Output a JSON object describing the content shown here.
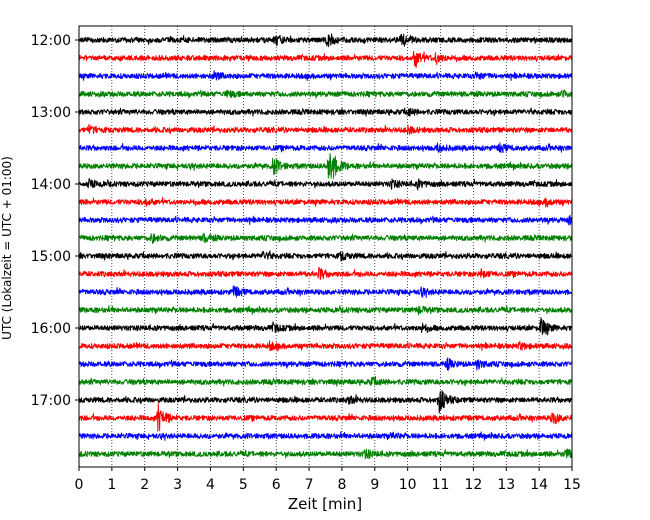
{
  "chart_data": {
    "type": "line",
    "title": "",
    "xlabel": "Zeit  [min]",
    "ylabel": "UTC (Lokalzeit = UTC + 01:00)",
    "xlim": [
      0,
      15
    ],
    "x_ticks": [
      0,
      1,
      2,
      3,
      4,
      5,
      6,
      7,
      8,
      9,
      10,
      11,
      12,
      13,
      14,
      15
    ],
    "x_grid": "dotted vertical lines at each minute",
    "y_ticks": [
      {
        "row": 0,
        "label": "12:00"
      },
      {
        "row": 4,
        "label": "13:00"
      },
      {
        "row": 8,
        "label": "14:00"
      },
      {
        "row": 12,
        "label": "15:00"
      },
      {
        "row": 16,
        "label": "16:00"
      },
      {
        "row": 20,
        "label": "17:00"
      }
    ],
    "row_interval_minutes": 15,
    "row_count": 24,
    "color_cycle": [
      "#000000",
      "#ff0000",
      "#0000ff",
      "#008000"
    ],
    "rows": [
      {
        "start": "12:00",
        "events": [
          {
            "t": 6.0,
            "amp": 0.45
          },
          {
            "t": 7.55,
            "amp": 0.6
          },
          {
            "t": 9.8,
            "amp": 0.7
          }
        ]
      },
      {
        "start": "12:15",
        "events": [
          {
            "t": 10.2,
            "amp": 1.0
          },
          {
            "t": 10.85,
            "amp": 0.5
          }
        ]
      },
      {
        "start": "12:30",
        "events": [
          {
            "t": 4.1,
            "amp": 0.35
          },
          {
            "t": 12.1,
            "amp": 0.3
          }
        ]
      },
      {
        "start": "12:45",
        "events": [
          {
            "t": 4.5,
            "amp": 0.3
          },
          {
            "t": 14.7,
            "amp": 0.3
          }
        ]
      },
      {
        "start": "13:00",
        "events": [
          {
            "t": 10.0,
            "amp": 0.3
          }
        ]
      },
      {
        "start": "13:15",
        "events": [
          {
            "t": 0.3,
            "amp": 0.35
          },
          {
            "t": 10.0,
            "amp": 0.3
          }
        ]
      },
      {
        "start": "13:30",
        "events": [
          {
            "t": 10.9,
            "amp": 0.3
          },
          {
            "t": 12.8,
            "amp": 0.35
          }
        ]
      },
      {
        "start": "13:45",
        "events": [
          {
            "t": 5.9,
            "amp": 0.9
          },
          {
            "t": 7.6,
            "amp": 2.5
          }
        ]
      },
      {
        "start": "14:00",
        "events": [
          {
            "t": 0.3,
            "amp": 0.35
          },
          {
            "t": 9.5,
            "amp": 0.35
          },
          {
            "t": 10.3,
            "amp": 0.35
          }
        ]
      },
      {
        "start": "14:15",
        "events": [
          {
            "t": 2.0,
            "amp": 0.3
          },
          {
            "t": 14.2,
            "amp": 0.35
          }
        ]
      },
      {
        "start": "14:30",
        "events": [
          {
            "t": 14.9,
            "amp": 0.3
          }
        ]
      },
      {
        "start": "14:45",
        "events": [
          {
            "t": 2.2,
            "amp": 0.4
          },
          {
            "t": 3.8,
            "amp": 0.35
          }
        ]
      },
      {
        "start": "15:00",
        "events": [
          {
            "t": 5.6,
            "amp": 0.35
          },
          {
            "t": 7.95,
            "amp": 0.35
          }
        ]
      },
      {
        "start": "15:15",
        "events": [
          {
            "t": 7.3,
            "amp": 0.5
          },
          {
            "t": 12.2,
            "amp": 0.4
          }
        ]
      },
      {
        "start": "15:30",
        "events": [
          {
            "t": 4.7,
            "amp": 0.5
          },
          {
            "t": 10.4,
            "amp": 0.3
          }
        ]
      },
      {
        "start": "15:45",
        "events": [
          {
            "t": 10.3,
            "amp": 0.3
          }
        ]
      },
      {
        "start": "16:00",
        "events": [
          {
            "t": 5.9,
            "amp": 0.35
          },
          {
            "t": 10.4,
            "amp": 0.35
          },
          {
            "t": 14.05,
            "amp": 1.0
          }
        ]
      },
      {
        "start": "16:15",
        "events": [
          {
            "t": 5.8,
            "amp": 0.3
          },
          {
            "t": 13.4,
            "amp": 0.3
          }
        ]
      },
      {
        "start": "16:30",
        "events": [
          {
            "t": 11.2,
            "amp": 0.45
          },
          {
            "t": 12.1,
            "amp": 0.4
          }
        ]
      },
      {
        "start": "16:45",
        "events": [
          {
            "t": 8.9,
            "amp": 0.35
          }
        ]
      },
      {
        "start": "17:00",
        "events": [
          {
            "t": 8.2,
            "amp": 0.35
          },
          {
            "t": 10.95,
            "amp": 1.3
          }
        ]
      },
      {
        "start": "17:15",
        "events": [
          {
            "t": 2.4,
            "amp": 1.4
          },
          {
            "t": 14.4,
            "amp": 0.6
          }
        ]
      },
      {
        "start": "17:30",
        "events": [
          {
            "t": 9.5,
            "amp": 0.2
          }
        ]
      },
      {
        "start": "17:45",
        "events": [
          {
            "t": 8.7,
            "amp": 0.4
          },
          {
            "t": 14.8,
            "amp": 0.45
          }
        ]
      }
    ]
  }
}
